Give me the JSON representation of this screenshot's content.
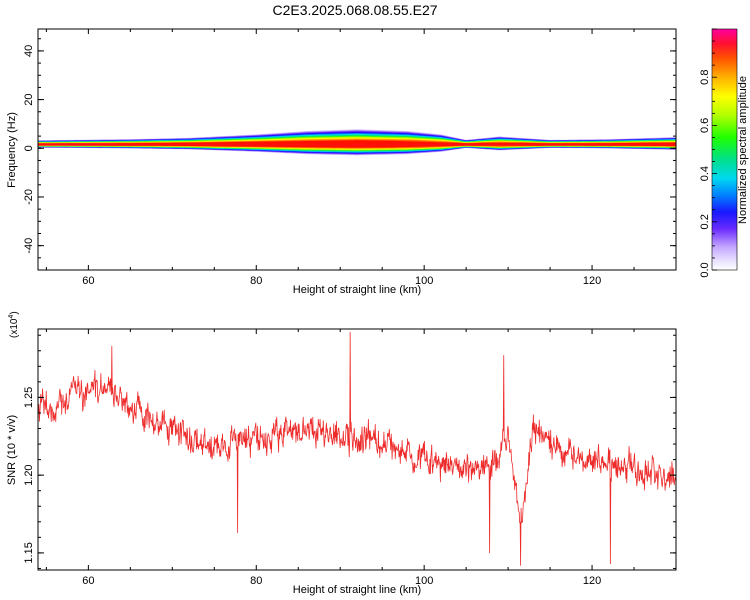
{
  "title": "C2E3.2025.068.08.55.E27",
  "colors": {
    "snr_line": "#ee2b2b",
    "frame": "#000000",
    "spectrogram_palette": [
      "#ffffff",
      "#cfc2ff",
      "#9a6cff",
      "#5a20ff",
      "#1010ff",
      "#0088ff",
      "#00e0e8",
      "#00e070",
      "#40ff00",
      "#b8ff00",
      "#ffff00",
      "#ffb000",
      "#ff6000",
      "#ff1000",
      "#ff0060",
      "#ff00a0"
    ]
  },
  "chart_data": [
    {
      "type": "heatmap",
      "panel": "spectrogram",
      "xlabel": "Height of straight line (km)",
      "ylabel": "Frequency (Hz)",
      "xlim": [
        54,
        130
      ],
      "ylim": [
        -50,
        49
      ],
      "xticks": [
        "60",
        "80",
        "100",
        "120"
      ],
      "yticks": [
        "40",
        "20",
        "0",
        "-20",
        "-40"
      ],
      "ridge_frequency_hz": 1.5,
      "spread_profile": [
        {
          "x": 55,
          "hz": 1.3,
          "amp": 0.95
        },
        {
          "x": 65,
          "hz": 1.6,
          "amp": 0.93
        },
        {
          "x": 72,
          "hz": 2.0,
          "amp": 0.85
        },
        {
          "x": 80,
          "hz": 3.0,
          "amp": 0.75
        },
        {
          "x": 86,
          "hz": 4.0,
          "amp": 0.8
        },
        {
          "x": 92,
          "hz": 4.5,
          "amp": 0.9
        },
        {
          "x": 98,
          "hz": 4.0,
          "amp": 0.85
        },
        {
          "x": 102,
          "hz": 3.0,
          "amp": 0.7
        },
        {
          "x": 105,
          "hz": 1.4,
          "amp": 0.92
        },
        {
          "x": 109,
          "hz": 2.4,
          "amp": 0.8
        },
        {
          "x": 115,
          "hz": 1.4,
          "amp": 0.93
        },
        {
          "x": 122,
          "hz": 1.6,
          "amp": 0.92
        },
        {
          "x": 130,
          "hz": 2.2,
          "amp": 0.9
        }
      ],
      "colorbar": {
        "label": "Normalized spectral amplitude",
        "range": [
          0,
          1
        ],
        "ticks": [
          "0.0",
          "0.2",
          "0.4",
          "0.6",
          "0.8"
        ]
      }
    },
    {
      "type": "line",
      "panel": "snr",
      "xlabel": "Height of straight line (km)",
      "ylabel": "SNR (10 * v/v)",
      "multiplier_label": "(x10",
      "multiplier_exp": "4",
      "xlim": [
        54,
        130
      ],
      "ylim": [
        1.139,
        1.294
      ],
      "xticks": [
        "60",
        "80",
        "100",
        "120"
      ],
      "yticks": [
        "1.25",
        "1.20",
        "1.15"
      ],
      "trend": [
        {
          "x": 54,
          "y": 1.245
        },
        {
          "x": 62,
          "y": 1.258
        },
        {
          "x": 64,
          "y": 1.25
        },
        {
          "x": 68,
          "y": 1.235
        },
        {
          "x": 72,
          "y": 1.225
        },
        {
          "x": 76,
          "y": 1.22
        },
        {
          "x": 82,
          "y": 1.225
        },
        {
          "x": 86,
          "y": 1.228
        },
        {
          "x": 90,
          "y": 1.225
        },
        {
          "x": 94,
          "y": 1.222
        },
        {
          "x": 98,
          "y": 1.215
        },
        {
          "x": 104,
          "y": 1.205
        },
        {
          "x": 108,
          "y": 1.205
        },
        {
          "x": 110,
          "y": 1.228
        },
        {
          "x": 111.5,
          "y": 1.17
        },
        {
          "x": 113,
          "y": 1.23
        },
        {
          "x": 116,
          "y": 1.215
        },
        {
          "x": 120,
          "y": 1.21
        },
        {
          "x": 124,
          "y": 1.205
        },
        {
          "x": 130,
          "y": 1.2
        }
      ],
      "noise_amplitude": 0.011,
      "spikes": [
        {
          "x": 91.2,
          "y": 1.292
        },
        {
          "x": 62.8,
          "y": 1.283
        },
        {
          "x": 109.5,
          "y": 1.277
        },
        {
          "x": 111.5,
          "y": 1.142
        },
        {
          "x": 122.2,
          "y": 1.143
        },
        {
          "x": 107.8,
          "y": 1.15
        },
        {
          "x": 77.8,
          "y": 1.163
        }
      ]
    }
  ]
}
